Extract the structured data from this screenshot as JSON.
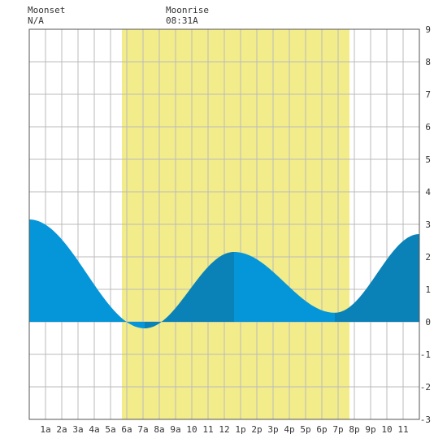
{
  "moon": {
    "moonset_label": "Moonset",
    "moonset_time": "N/A",
    "moonrise_label": "Moonrise",
    "moonrise_time": "08:31A"
  },
  "chart_data": {
    "type": "area",
    "x_ticks": [
      "1a",
      "2a",
      "3a",
      "4a",
      "5a",
      "6a",
      "7a",
      "8a",
      "9a",
      "10",
      "11",
      "12",
      "1p",
      "2p",
      "3p",
      "4p",
      "5p",
      "6p",
      "7p",
      "8p",
      "9p",
      "10",
      "11"
    ],
    "y_ticks": [
      "-3",
      "-2",
      "-1",
      "0",
      "1",
      "2",
      "3",
      "4",
      "5",
      "6",
      "7",
      "8",
      "9"
    ],
    "xlim": [
      0,
      24
    ],
    "ylim": [
      -3,
      9
    ],
    "daylight_hours": [
      5.7,
      19.7
    ],
    "extrema": [
      {
        "hour": 0.0,
        "value": 3.15
      },
      {
        "hour": 7.1,
        "value": -0.2
      },
      {
        "hour": 12.6,
        "value": 2.15
      },
      {
        "hour": 18.8,
        "value": 0.28
      },
      {
        "hour": 24.0,
        "value": 2.7
      }
    ],
    "grid": true,
    "colors": {
      "daylight": "#f2ec8a",
      "rising": "#0a82b8",
      "falling": "#0596da",
      "grid": "#bbbbbb",
      "frame": "#555555"
    }
  }
}
